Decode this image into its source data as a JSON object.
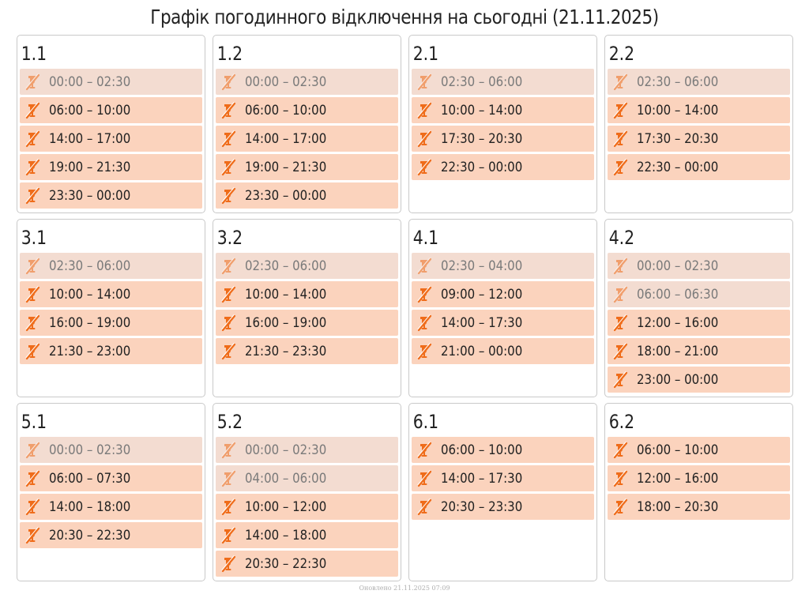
{
  "title": "Графік погодинного відключення на сьогодні (21.11.2025)",
  "footer": "Оновлено 21.11.2025 07:09",
  "icon": "power-off-icon",
  "colors": {
    "slot_active": "#fbd3bd",
    "slot_past": "#f3dcd1",
    "icon": "#ef6c1a"
  },
  "groups": [
    {
      "label": "1.1",
      "slots": [
        {
          "time": "00:00 – 02:30",
          "past": true
        },
        {
          "time": "06:00 – 10:00",
          "past": false
        },
        {
          "time": "14:00 – 17:00",
          "past": false
        },
        {
          "time": "19:00 – 21:30",
          "past": false
        },
        {
          "time": "23:30 – 00:00",
          "past": false
        }
      ]
    },
    {
      "label": "1.2",
      "slots": [
        {
          "time": "00:00 – 02:30",
          "past": true
        },
        {
          "time": "06:00 – 10:00",
          "past": false
        },
        {
          "time": "14:00 – 17:00",
          "past": false
        },
        {
          "time": "19:00 – 21:30",
          "past": false
        },
        {
          "time": "23:30 – 00:00",
          "past": false
        }
      ]
    },
    {
      "label": "2.1",
      "slots": [
        {
          "time": "02:30 – 06:00",
          "past": true
        },
        {
          "time": "10:00 – 14:00",
          "past": false
        },
        {
          "time": "17:30 – 20:30",
          "past": false
        },
        {
          "time": "22:30 – 00:00",
          "past": false
        }
      ]
    },
    {
      "label": "2.2",
      "slots": [
        {
          "time": "02:30 – 06:00",
          "past": true
        },
        {
          "time": "10:00 – 14:00",
          "past": false
        },
        {
          "time": "17:30 – 20:30",
          "past": false
        },
        {
          "time": "22:30 – 00:00",
          "past": false
        }
      ]
    },
    {
      "label": "3.1",
      "slots": [
        {
          "time": "02:30 – 06:00",
          "past": true
        },
        {
          "time": "10:00 – 14:00",
          "past": false
        },
        {
          "time": "16:00 – 19:00",
          "past": false
        },
        {
          "time": "21:30 – 23:00",
          "past": false
        }
      ]
    },
    {
      "label": "3.2",
      "slots": [
        {
          "time": "02:30 – 06:00",
          "past": true
        },
        {
          "time": "10:00 – 14:00",
          "past": false
        },
        {
          "time": "16:00 – 19:00",
          "past": false
        },
        {
          "time": "21:30 – 23:30",
          "past": false
        }
      ]
    },
    {
      "label": "4.1",
      "slots": [
        {
          "time": "02:30 – 04:00",
          "past": true
        },
        {
          "time": "09:00 – 12:00",
          "past": false
        },
        {
          "time": "14:00 – 17:30",
          "past": false
        },
        {
          "time": "21:00 – 00:00",
          "past": false
        }
      ]
    },
    {
      "label": "4.2",
      "slots": [
        {
          "time": "00:00 – 02:30",
          "past": true
        },
        {
          "time": "06:00 – 06:30",
          "past": true
        },
        {
          "time": "12:00 – 16:00",
          "past": false
        },
        {
          "time": "18:00 – 21:00",
          "past": false
        },
        {
          "time": "23:00 – 00:00",
          "past": false
        }
      ]
    },
    {
      "label": "5.1",
      "slots": [
        {
          "time": "00:00 – 02:30",
          "past": true
        },
        {
          "time": "06:00 – 07:30",
          "past": false
        },
        {
          "time": "14:00 – 18:00",
          "past": false
        },
        {
          "time": "20:30 – 22:30",
          "past": false
        }
      ]
    },
    {
      "label": "5.2",
      "slots": [
        {
          "time": "00:00 – 02:30",
          "past": true
        },
        {
          "time": "04:00 – 06:00",
          "past": true
        },
        {
          "time": "10:00 – 12:00",
          "past": false
        },
        {
          "time": "14:00 – 18:00",
          "past": false
        },
        {
          "time": "20:30 – 22:30",
          "past": false
        }
      ]
    },
    {
      "label": "6.1",
      "slots": [
        {
          "time": "06:00 – 10:00",
          "past": false
        },
        {
          "time": "14:00 – 17:30",
          "past": false
        },
        {
          "time": "20:30 – 23:30",
          "past": false
        }
      ]
    },
    {
      "label": "6.2",
      "slots": [
        {
          "time": "06:00 – 10:00",
          "past": false
        },
        {
          "time": "12:00 – 16:00",
          "past": false
        },
        {
          "time": "18:00 – 20:30",
          "past": false
        }
      ]
    }
  ]
}
